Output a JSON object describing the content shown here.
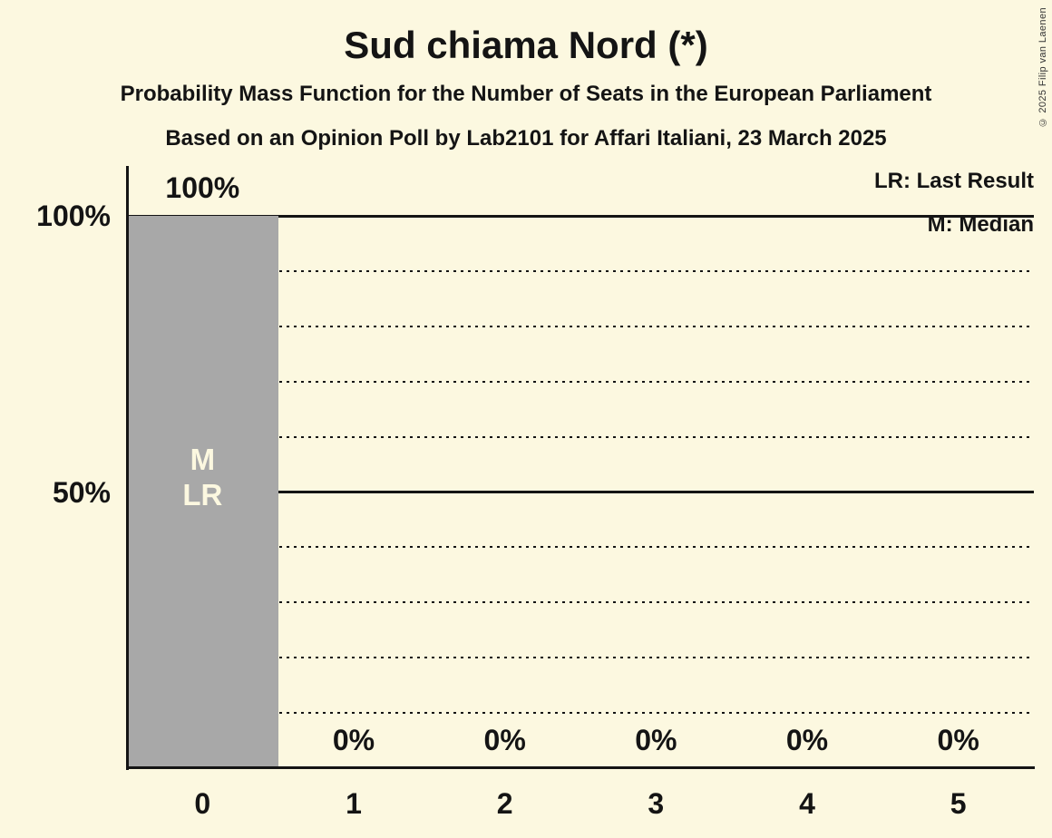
{
  "title": "Sud chiama Nord (*)",
  "subtitle1": "Probability Mass Function for the Number of Seats in the European Parliament",
  "subtitle2": "Based on an Opinion Poll by Lab2101 for Affari Italiani, 23 March 2025",
  "copyright": "© 2025 Filip van Laenen",
  "colors": {
    "background": "#fcf8e0",
    "bar": "#a8a8a8",
    "text": "#141414",
    "bar_annotation_text": "#fcf8e0"
  },
  "chart_data": {
    "type": "bar",
    "title": "Sud chiama Nord (*)",
    "categories": [
      "0",
      "1",
      "2",
      "3",
      "4",
      "5"
    ],
    "values": [
      100,
      0,
      0,
      0,
      0,
      0
    ],
    "value_labels": [
      "100%",
      "0%",
      "0%",
      "0%",
      "0%",
      "0%"
    ],
    "ylim": [
      0,
      100
    ],
    "y_ticks": [
      {
        "value": 100,
        "label": "100%"
      },
      {
        "value": 50,
        "label": "50%"
      }
    ],
    "gridlines": {
      "solid_pcts": [
        50,
        100
      ],
      "dotted_pcts": [
        10,
        20,
        30,
        40,
        60,
        70,
        80,
        90
      ],
      "orientation": "horizontal-only"
    },
    "annotations": [
      {
        "category": "0",
        "lines": [
          "M",
          "LR"
        ]
      }
    ],
    "legend": [
      "LR: Last Result",
      "M: Median"
    ],
    "legend_position": "top-right"
  }
}
